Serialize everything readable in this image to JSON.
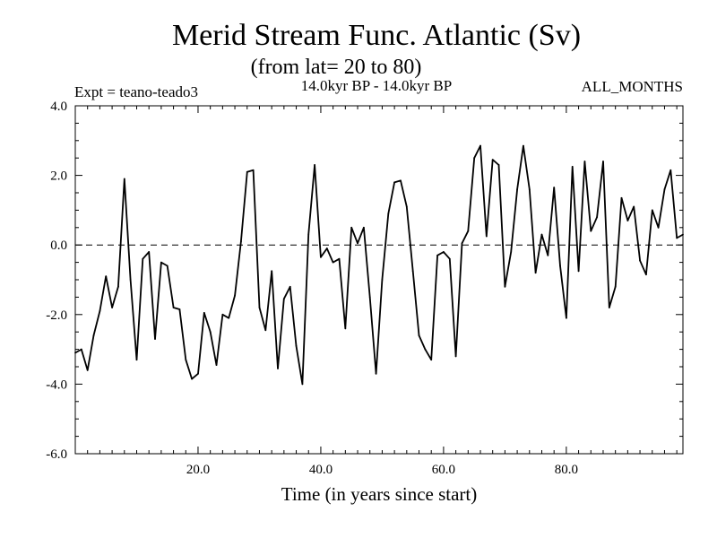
{
  "chart_data": {
    "type": "line",
    "title": "Merid Stream Func. Atlantic (Sv)",
    "subtitle": "(from lat= 20 to 80)",
    "expt_label": "Expt = teano-teado3",
    "period_label": "14.0kyr BP - 14.0kyr BP",
    "months_label": "ALL_MONTHS",
    "xlabel": "Time (in years since start)",
    "ylabel": "",
    "xlim": [
      0,
      99
    ],
    "ylim": [
      -6,
      4
    ],
    "x_ticks": [
      20,
      40,
      60,
      80
    ],
    "x_tick_labels": [
      "20.0",
      "40.0",
      "60.0",
      "80.0"
    ],
    "y_ticks": [
      4,
      2,
      0,
      -2,
      -4,
      -6
    ],
    "y_tick_labels": [
      "4.0",
      "2.0",
      "0.0",
      "-2.0",
      "-4.0",
      "-6.0"
    ],
    "reference_line": 0,
    "x": [
      0,
      1,
      2,
      3,
      4,
      5,
      6,
      7,
      8,
      9,
      10,
      11,
      12,
      13,
      14,
      15,
      16,
      17,
      18,
      19,
      20,
      21,
      22,
      23,
      24,
      25,
      26,
      27,
      28,
      29,
      30,
      31,
      32,
      33,
      34,
      35,
      36,
      37,
      38,
      39,
      40,
      41,
      42,
      43,
      44,
      45,
      46,
      47,
      48,
      49,
      50,
      51,
      52,
      53,
      54,
      55,
      56,
      57,
      58,
      59,
      60,
      61,
      62,
      63,
      64,
      65,
      66,
      67,
      68,
      69,
      70,
      71,
      72,
      73,
      74,
      75,
      76,
      77,
      78,
      79,
      80,
      81,
      82,
      83,
      84,
      85,
      86,
      87,
      88,
      89,
      90,
      91,
      92,
      93,
      94,
      95,
      96,
      97,
      98,
      99
    ],
    "values": [
      -3.1,
      -3.0,
      -3.6,
      -2.6,
      -1.9,
      -0.9,
      -1.8,
      -1.2,
      1.9,
      -1.0,
      -3.3,
      -0.4,
      -0.2,
      -2.7,
      -0.5,
      -0.6,
      -1.8,
      -1.85,
      -3.3,
      -3.85,
      -3.7,
      -1.95,
      -2.5,
      -3.45,
      -2.0,
      -2.1,
      -1.45,
      0.1,
      2.1,
      2.15,
      -1.8,
      -2.45,
      -0.75,
      -3.55,
      -1.55,
      -1.2,
      -2.9,
      -4.0,
      0.3,
      2.3,
      -0.35,
      -0.1,
      -0.5,
      -0.4,
      -2.4,
      0.5,
      0.05,
      0.5,
      -1.5,
      -3.7,
      -1.0,
      0.9,
      1.8,
      1.85,
      1.1,
      -0.75,
      -2.6,
      -3.0,
      -3.3,
      -0.3,
      -0.2,
      -0.4,
      -3.2,
      0.05,
      0.4,
      2.5,
      2.85,
      0.25,
      2.45,
      2.3,
      -1.2,
      -0.2,
      1.6,
      2.85,
      1.6,
      -0.8,
      0.3,
      -0.3,
      1.65,
      -0.6,
      -2.1,
      2.25,
      -0.75,
      2.4,
      0.4,
      0.8,
      2.4,
      -1.8,
      -1.2,
      1.35,
      0.7,
      1.1,
      -0.45,
      -0.85,
      1.0,
      0.5,
      1.6,
      2.15,
      0.2,
      0.3
    ]
  }
}
